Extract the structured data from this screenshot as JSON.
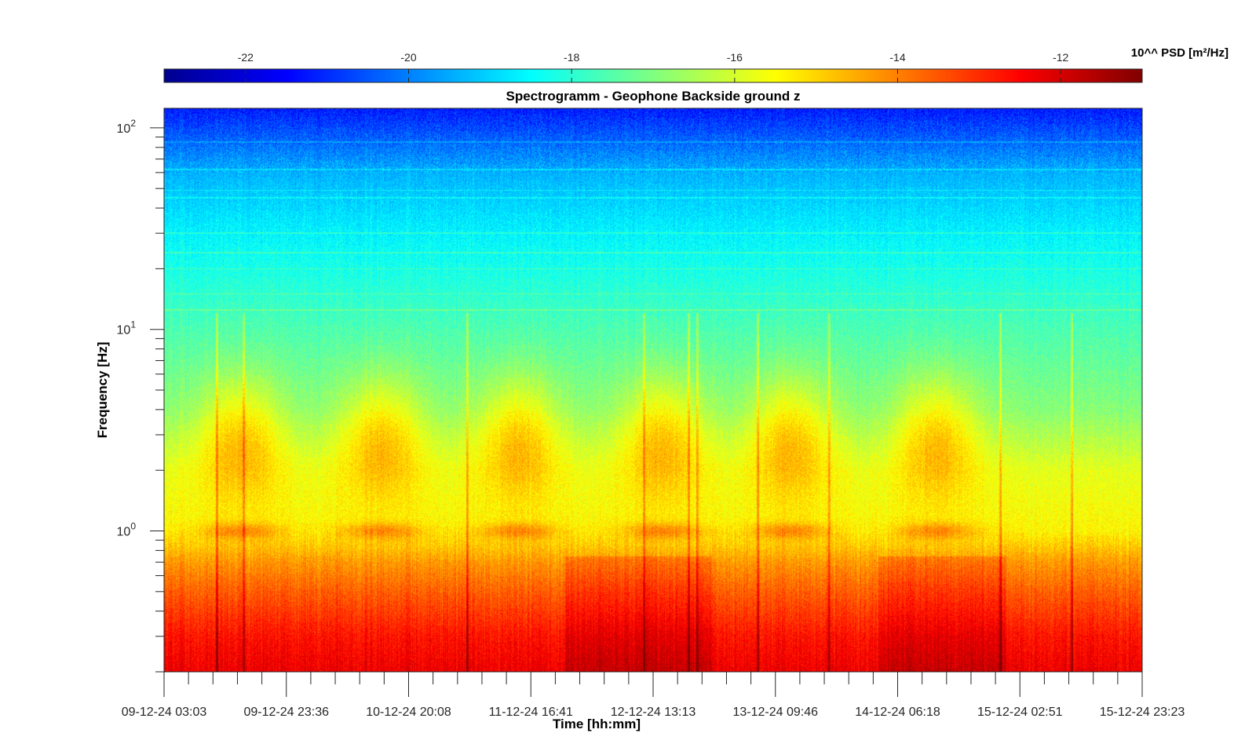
{
  "chart_data": {
    "type": "heatmap",
    "title": "Spectrogramm - Geophone Backside ground z",
    "xlabel": "Time [hh:mm]",
    "ylabel": "Frequency [Hz]",
    "y_scale": "log",
    "ylim": [
      0.2,
      125
    ],
    "y_ticks": [
      {
        "value": 1,
        "base": "10",
        "exp": "0"
      },
      {
        "value": 10,
        "base": "10",
        "exp": "1"
      },
      {
        "value": 100,
        "base": "10",
        "exp": "2"
      }
    ],
    "x_tick_labels": [
      "09-12-24 03:03",
      "09-12-24 23:36",
      "10-12-24 20:08",
      "11-12-24 16:41",
      "12-12-24 13:13",
      "13-12-24 09:46",
      "14-12-24 06:18",
      "15-12-24 02:51",
      "15-12-24 23:23"
    ],
    "colormap": "jet",
    "colorbar": {
      "label": "10^^ PSD [m²/Hz]",
      "range": [
        -23,
        -11
      ],
      "ticks": [
        -22,
        -20,
        -18,
        -16,
        -14,
        -12
      ],
      "tick_labels": [
        "-22",
        "-20",
        "-18",
        "-16",
        "-14",
        "-12"
      ],
      "position": "top"
    },
    "description_values": {
      "psd_log10_profile": [
        {
          "f": 0.2,
          "v": -12.3
        },
        {
          "f": 0.3,
          "v": -12.7
        },
        {
          "f": 0.5,
          "v": -13.6
        },
        {
          "f": 0.7,
          "v": -14.3
        },
        {
          "f": 1.0,
          "v": -15.4
        },
        {
          "f": 2.0,
          "v": -15.8
        },
        {
          "f": 4.0,
          "v": -16.9
        },
        {
          "f": 10,
          "v": -17.6
        },
        {
          "f": 30,
          "v": -18.6
        },
        {
          "f": 60,
          "v": -19.4
        },
        {
          "f": 125,
          "v": -21.2
        }
      ]
    }
  },
  "colors": {
    "axis": "#262626",
    "background": "#ffffff"
  }
}
